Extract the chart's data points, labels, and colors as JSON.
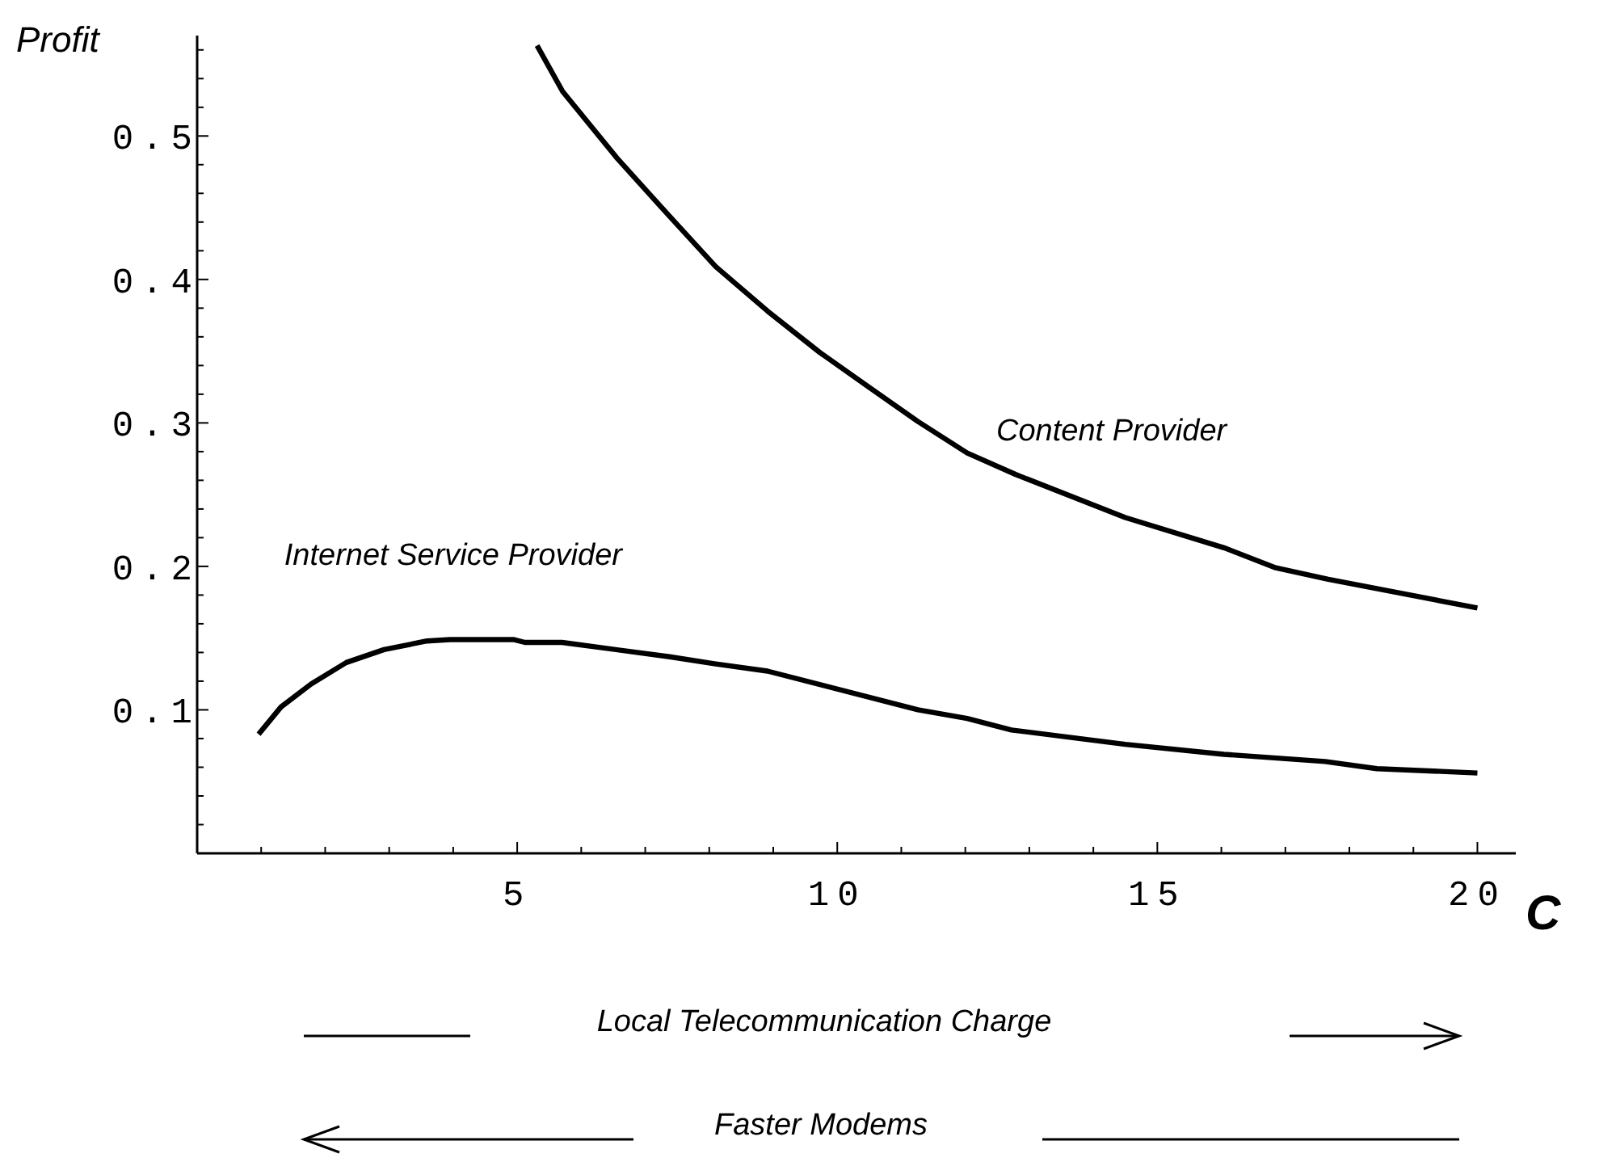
{
  "chart_data": {
    "type": "line",
    "ylabel": "Profit",
    "xlabel": "C",
    "annotations": [
      "Local Telecommunication Charge",
      "Faster Modems"
    ],
    "marker": "none",
    "line_style": "solid",
    "xlim": [
      0,
      20.6
    ],
    "ylim": [
      0,
      0.57
    ],
    "xticks": [
      {
        "value": 1,
        "label": null
      },
      {
        "value": 2,
        "label": null
      },
      {
        "value": 3,
        "label": null
      },
      {
        "value": 4,
        "label": null
      },
      5,
      {
        "value": 6,
        "label": null
      },
      {
        "value": 7,
        "label": null
      },
      {
        "value": 8,
        "label": null
      },
      {
        "value": 9,
        "label": null
      },
      10,
      {
        "value": 11,
        "label": null
      },
      {
        "value": 12,
        "label": null
      },
      {
        "value": 13,
        "label": null
      },
      {
        "value": 14,
        "label": null
      },
      15,
      {
        "value": 16,
        "label": null
      },
      {
        "value": 17,
        "label": null
      },
      {
        "value": 18,
        "label": null
      },
      {
        "value": 19,
        "label": null
      },
      20
    ],
    "yticks": [
      {
        "value": 0.02,
        "label": null
      },
      {
        "value": 0.04,
        "label": null
      },
      {
        "value": 0.06,
        "label": null
      },
      {
        "value": 0.08,
        "label": null
      },
      0.1,
      {
        "value": 0.12,
        "label": null
      },
      {
        "value": 0.14,
        "label": null
      },
      {
        "value": 0.16,
        "label": null
      },
      {
        "value": 0.18,
        "label": null
      },
      0.2,
      {
        "value": 0.22,
        "label": null
      },
      {
        "value": 0.24,
        "label": null
      },
      {
        "value": 0.26,
        "label": null
      },
      {
        "value": 0.28,
        "label": null
      },
      0.3,
      {
        "value": 0.32,
        "label": null
      },
      {
        "value": 0.34,
        "label": null
      },
      {
        "value": 0.36,
        "label": null
      },
      {
        "value": 0.38,
        "label": null
      },
      0.4,
      {
        "value": 0.42,
        "label": null
      },
      {
        "value": 0.44,
        "label": null
      },
      {
        "value": 0.46,
        "label": null
      },
      {
        "value": 0.48,
        "label": null
      },
      0.5,
      {
        "value": 0.52,
        "label": null
      },
      {
        "value": 0.54,
        "label": null
      },
      {
        "value": 0.56,
        "label": null
      }
    ],
    "series": [
      {
        "name": "Content Provider",
        "color": "#000000",
        "x": [
          5.31,
          5.71,
          6.57,
          7.38,
          8.1,
          8.91,
          9.73,
          10.49,
          11.26,
          12.03,
          12.79,
          14.5,
          16.04,
          16.85,
          17.67,
          20.0
        ],
        "values": [
          0.563,
          0.531,
          0.484,
          0.444,
          0.409,
          0.378,
          0.349,
          0.325,
          0.301,
          0.279,
          0.264,
          0.234,
          0.213,
          0.199,
          0.191,
          0.171
        ]
      },
      {
        "name": "Internet Service Provider",
        "color": "#000000",
        "x": [
          0.96,
          1.31,
          1.78,
          2.33,
          2.92,
          3.59,
          3.95,
          4.94,
          5.12,
          5.7,
          7.38,
          8.1,
          8.91,
          11.26,
          12.03,
          12.72,
          14.5,
          16.04,
          17.62,
          18.43,
          20.0
        ],
        "values": [
          0.083,
          0.102,
          0.118,
          0.133,
          0.142,
          0.148,
          0.149,
          0.149,
          0.147,
          0.147,
          0.137,
          0.132,
          0.127,
          0.1,
          0.094,
          0.086,
          0.076,
          0.069,
          0.064,
          0.059,
          0.056
        ]
      }
    ]
  }
}
